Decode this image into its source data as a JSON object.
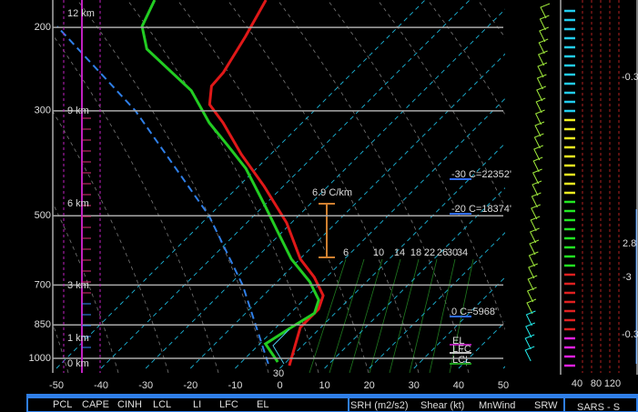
{
  "chart_data": {
    "type": "skewt",
    "xlim": [
      -50,
      50
    ],
    "xticks": [
      -50,
      -40,
      -30,
      -20,
      -10,
      0,
      10,
      20,
      30,
      40,
      50
    ],
    "ylim": [
      1050,
      175
    ],
    "yticks": [
      200,
      300,
      500,
      700,
      850,
      1000
    ],
    "log_scale": true,
    "grid": true,
    "series": [
      {
        "color": "#e01818",
        "pressure": [
          1036,
          860,
          787,
          737,
          674,
          617,
          517,
          433,
          371,
          318,
          291,
          266,
          249,
          209,
          175
        ],
        "values": [
          1.5,
          -4.6,
          -4.6,
          -6.6,
          -12.7,
          -19.9,
          -31.1,
          -44.3,
          -56.5,
          -67.7,
          -74.8,
          -78.5,
          -78.9,
          -82,
          -85.6
        ]
      },
      {
        "color": "#22cc22",
        "pressure": [
          1018,
          932,
          860,
          803,
          753,
          689,
          617,
          540,
          473,
          397,
          355,
          318,
          272,
          222,
          199,
          175
        ],
        "values": [
          -1.9,
          -8.7,
          -6.6,
          -4.6,
          -6.6,
          -12.7,
          -21.9,
          -31.1,
          -40.2,
          -52.4,
          -61.6,
          -70.8,
          -82,
          -101.3,
          -107.4,
          -110.5
        ]
      },
      {
        "color": "#2f7fe8",
        "dashed": true,
        "pressure": [
          1027,
          700,
          500,
          300,
          199
        ],
        "values": [
          -3.6,
          -27,
          -50,
          -90,
          -126.4
        ]
      }
    ],
    "height_labels": [
      "12 km",
      "9 km",
      "6 km",
      "3 km",
      "1 km",
      "0 km"
    ],
    "lapse_rate": "6.9 C/km",
    "freezing_levels": [
      "-30 C=22352'",
      "-20 C=18374'",
      "0 C=5968'"
    ],
    "mixing_ratio_labels": [
      "6",
      "10",
      "14",
      "18",
      "22",
      "26",
      "30",
      "34"
    ],
    "parcel_levels": [
      "EL",
      "LFC",
      "LCL"
    ],
    "surface_label": "30",
    "wind_axis_labels": [
      "40",
      "80",
      "120"
    ],
    "side_values": [
      "-0.3",
      "2.8",
      "-3",
      "-0.3"
    ],
    "table_headers": [
      "PCL",
      "CAPE",
      "CINH",
      "LCL",
      "LI",
      "LFC",
      "EL"
    ],
    "table2_headers": [
      "SRH (m2/s2)",
      "Shear (kt)",
      "MnWind",
      "SRW"
    ],
    "panel_title": "SARS - S"
  }
}
